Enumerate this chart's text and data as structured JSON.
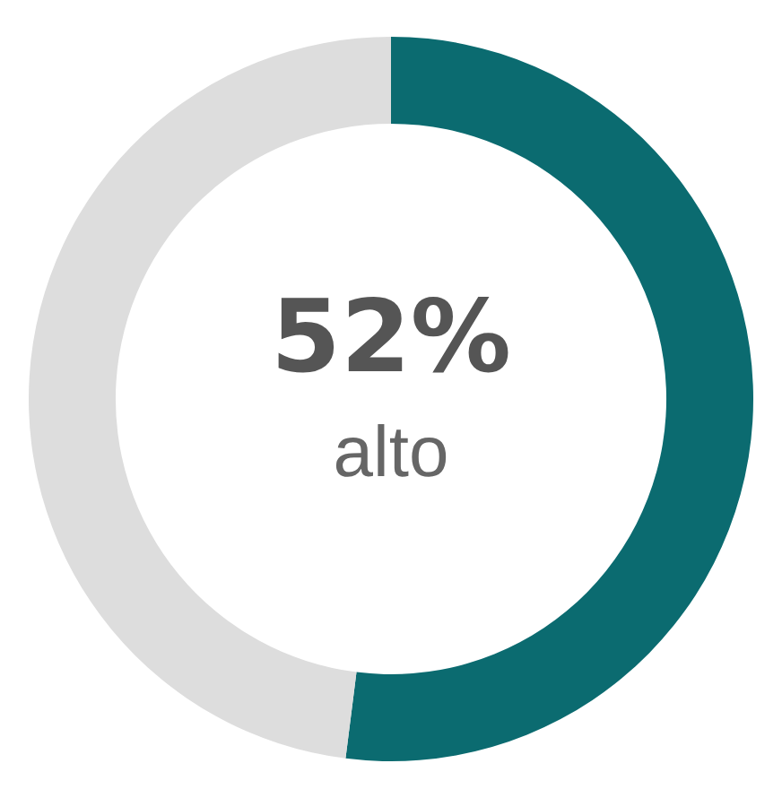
{
  "chart_data": {
    "type": "donut",
    "categories": [
      "alto",
      null
    ],
    "values": [
      52,
      48
    ],
    "colors": [
      "#0b6b70",
      "#dddddd"
    ],
    "value_labels": [
      "52%",
      null
    ],
    "legend": false
  }
}
